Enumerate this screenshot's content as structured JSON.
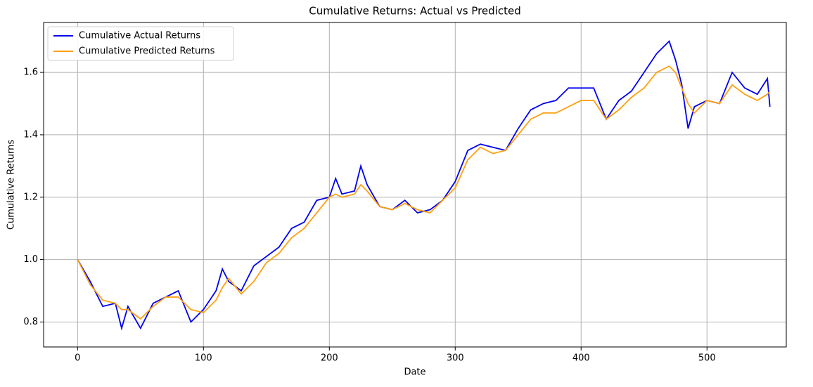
{
  "chart_data": {
    "type": "line",
    "title": "Cumulative Returns: Actual vs Predicted",
    "x_label": "Date",
    "y_label": "Cumulative Returns",
    "x": [
      0,
      10,
      20,
      30,
      35,
      40,
      50,
      60,
      70,
      80,
      90,
      100,
      110,
      115,
      120,
      130,
      140,
      150,
      160,
      170,
      180,
      190,
      200,
      205,
      210,
      220,
      225,
      230,
      240,
      250,
      260,
      270,
      280,
      290,
      300,
      310,
      320,
      330,
      340,
      350,
      360,
      370,
      380,
      390,
      400,
      410,
      420,
      430,
      440,
      450,
      460,
      470,
      475,
      480,
      485,
      490,
      500,
      510,
      520,
      530,
      540,
      548,
      550
    ],
    "series": [
      {
        "name": "Cumulative Actual Returns",
        "color": "#0000ee",
        "values": [
          1.0,
          0.93,
          0.85,
          0.86,
          0.78,
          0.85,
          0.78,
          0.86,
          0.88,
          0.9,
          0.8,
          0.84,
          0.9,
          0.97,
          0.93,
          0.9,
          0.98,
          1.01,
          1.04,
          1.1,
          1.12,
          1.19,
          1.2,
          1.26,
          1.21,
          1.22,
          1.3,
          1.24,
          1.17,
          1.16,
          1.19,
          1.15,
          1.16,
          1.19,
          1.25,
          1.35,
          1.37,
          1.36,
          1.35,
          1.42,
          1.48,
          1.5,
          1.51,
          1.55,
          1.55,
          1.55,
          1.45,
          1.51,
          1.54,
          1.6,
          1.66,
          1.7,
          1.64,
          1.56,
          1.42,
          1.49,
          1.51,
          1.5,
          1.6,
          1.55,
          1.53,
          1.58,
          1.49
        ]
      },
      {
        "name": "Cumulative Predicted Returns",
        "color": "#ffa010",
        "values": [
          1.0,
          0.92,
          0.87,
          0.86,
          0.84,
          0.84,
          0.81,
          0.85,
          0.88,
          0.88,
          0.84,
          0.83,
          0.87,
          0.91,
          0.94,
          0.89,
          0.93,
          0.99,
          1.02,
          1.07,
          1.1,
          1.15,
          1.2,
          1.21,
          1.2,
          1.21,
          1.24,
          1.22,
          1.17,
          1.16,
          1.18,
          1.16,
          1.15,
          1.19,
          1.23,
          1.32,
          1.36,
          1.34,
          1.35,
          1.4,
          1.45,
          1.47,
          1.47,
          1.49,
          1.51,
          1.51,
          1.45,
          1.48,
          1.52,
          1.55,
          1.6,
          1.62,
          1.6,
          1.55,
          1.5,
          1.47,
          1.51,
          1.5,
          1.56,
          1.53,
          1.51,
          1.53,
          1.54
        ]
      }
    ],
    "xlim": [
      -27,
      563
    ],
    "ylim": [
      0.72,
      1.76
    ],
    "xticks": [
      0,
      100,
      200,
      300,
      400,
      500
    ],
    "yticks": [
      0.8,
      {
        "value": 1,
        "label": "1.0"
      },
      1.2,
      1.4,
      1.6
    ],
    "grid": true,
    "legend": "upper left"
  }
}
